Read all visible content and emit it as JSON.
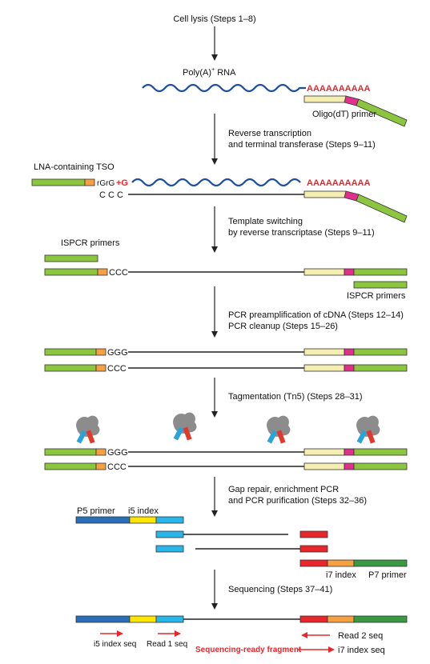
{
  "colors": {
    "green": "#8cc63f",
    "orange": "#f5a043",
    "cream": "#f4eeb0",
    "magenta": "#e0308c",
    "blue_wave": "#1e4fa0",
    "red": "#e8262b",
    "dark_blue": "#2b6fb8",
    "yellow": "#ffe600",
    "cyan": "#29b6e8",
    "dark_green": "#3a9a44",
    "arrow": "#222222",
    "tn5_gray": "#8c8c8c",
    "tn5_red": "#e03a2f",
    "tn5_blue": "#2aa3d8"
  },
  "steps": {
    "s1": "Cell lysis (Steps 1–8)",
    "s2_a": "Reverse transcription",
    "s2_b": "and terminal transferase (Steps 9–11)",
    "s3_a": "Template switching",
    "s3_b": "by reverse transcriptase (Steps 9–11)",
    "s4_a": "PCR preamplification of cDNA (Steps 12–14)",
    "s4_b": "PCR cleanup (Steps 15–26)",
    "s5": "Tagmentation (Tn5) (Steps 28–31)",
    "s6_a": "Gap repair, enrichment PCR",
    "s6_b": "and PCR purification (Steps 32–36)",
    "s7": "Sequencing (Steps 37–41)"
  },
  "labels": {
    "polya": "Poly(A)",
    "polya_sup": "+",
    "polya_rest": " RNA",
    "aaaa": "AAAAAAAAAA",
    "oligo_dt": "Oligo(dT) primer",
    "lna_tso": "LNA-containing TSO",
    "tso_rg": "rGrG",
    "tso_g": "+G",
    "ccc_spaced": "C  C  C",
    "ispcr_top": "ISPCR primers",
    "ispcr_bottom": "ISPCR primers",
    "ccc": "CCC",
    "ggg": "GGG",
    "p5_primer": "P5 primer",
    "i5_index": "i5 index",
    "i7_index": "i7 index",
    "p7_primer": "P7 primer",
    "i5_index_seq": "i5 index seq",
    "read1_seq": "Read 1 seq",
    "read2_seq": "Read 2 seq",
    "i7_index_seq": "i7 index seq",
    "seq_ready": "Sequencing-ready fragment"
  }
}
